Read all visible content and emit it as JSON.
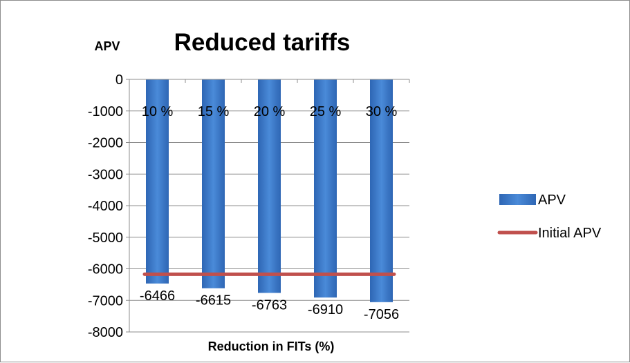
{
  "chart_data": {
    "type": "bar",
    "title": "Reduced tariffs",
    "ylabel": "APV",
    "xlabel": "Reduction in FITs (%)",
    "categories": [
      "10 %",
      "15 %",
      "20 %",
      "25 %",
      "30 %"
    ],
    "series": [
      {
        "name": "APV",
        "type": "bar",
        "values": [
          -6466,
          -6615,
          -6763,
          -6910,
          -7056
        ],
        "color": "#3b78c8"
      },
      {
        "name": "Initial APV",
        "type": "line",
        "values": [
          -6172,
          -6172,
          -6172,
          -6172,
          -6172
        ],
        "color": "#c0504d"
      }
    ],
    "data_labels": [
      "-6466",
      "-6615",
      "-6763",
      "-6910",
      "-7056"
    ],
    "yticks": [
      "0",
      "-1000",
      "-2000",
      "-3000",
      "-4000",
      "-5000",
      "-6000",
      "-7000",
      "-8000"
    ],
    "ylim": [
      -8000,
      0
    ],
    "grid": true,
    "legend_position": "right"
  },
  "colors": {
    "bar_top": "#4a8ad8",
    "bar_bottom": "#2a5fa8",
    "line": "#c0504d",
    "grid": "#8c8c8c"
  }
}
